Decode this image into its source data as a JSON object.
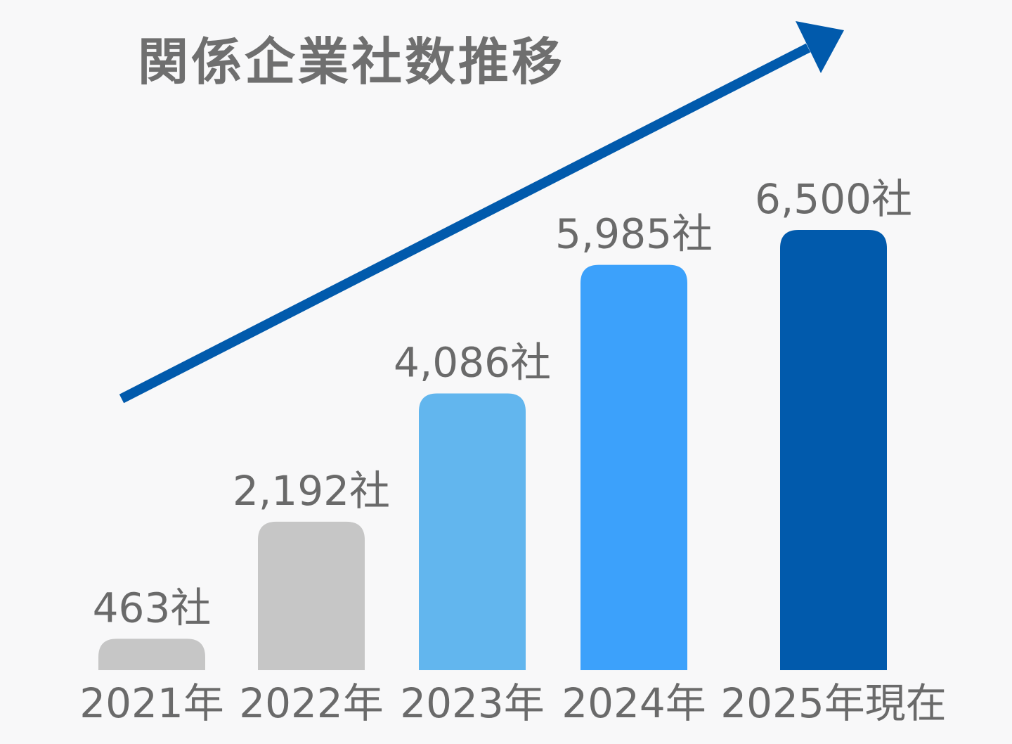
{
  "chart_data": {
    "type": "bar",
    "title": "関係企業社数推移",
    "categories": [
      "2021年",
      "2022年",
      "2023年",
      "2024年",
      "2025年現在"
    ],
    "values": [
      463,
      2192,
      4086,
      5985,
      6500
    ],
    "value_labels": [
      "463社",
      "2,192社",
      "4,086社",
      "5,985社",
      "6,500社"
    ],
    "bar_colors": [
      "#c6c6c6",
      "#c6c6c6",
      "#62b6ee",
      "#3ca1fb",
      "#015aac"
    ],
    "xlabel": "",
    "ylabel": "",
    "grid": false,
    "legend": "none",
    "trend_arrow_color": "#015aac"
  }
}
